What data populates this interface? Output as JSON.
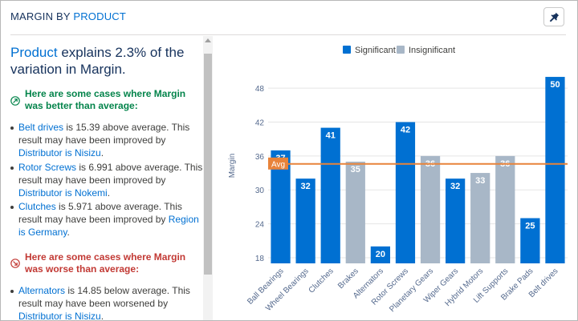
{
  "header": {
    "title_prefix": "MARGIN BY",
    "title_accent": "PRODUCT",
    "pin_icon": "pin-icon"
  },
  "insight": {
    "headline_accent": "Product",
    "headline_rest": " explains 2.3% of the variation in Margin.",
    "better": {
      "title": "Here are some cases where Margin was better than average:",
      "icon": "trend-up-circle-icon",
      "items": [
        {
          "name": "Belt drives",
          "text": " is 15.39 above average. This result may have been improved by ",
          "driver": "Distributor is Nisizu",
          "tail": "."
        },
        {
          "name": "Rotor Screws",
          "text": " is 6.991 above average. This result may have been improved by ",
          "driver": "Distributor is Nokemi",
          "tail": "."
        },
        {
          "name": "Clutches",
          "text": " is 5.971 above average. This result may have been improved by ",
          "driver": "Region is Germany",
          "tail": "."
        }
      ]
    },
    "worse": {
      "title": "Here are some cases where Margin was worse than average:",
      "icon": "trend-down-circle-icon",
      "items": [
        {
          "name": "Alternators",
          "text": " is 14.85 below average. This result may have been worsened by ",
          "driver": "Distributor is Nisizu",
          "tail": "."
        }
      ]
    }
  },
  "colors": {
    "significant": "#0070d2",
    "insignificant": "#a8b7c7",
    "average_line": "#e8833a",
    "good": "#04844b",
    "bad": "#c23934"
  },
  "chart_data": {
    "type": "bar",
    "title": "",
    "ylabel": "Margin",
    "xlabel": "",
    "ylim": [
      17,
      51
    ],
    "yticks": [
      18,
      24,
      30,
      36,
      42,
      48
    ],
    "grid": true,
    "legend": {
      "placement": "top-center",
      "entries": [
        "Significant",
        "Insignificant"
      ]
    },
    "average": {
      "label": "Avg",
      "value": 34.6
    },
    "categories": [
      "Ball Bearings",
      "Wheel Bearings",
      "Clutches",
      "Brakes",
      "Alternators",
      "Rotor Screws",
      "Planetary Gears",
      "Wiper Gears",
      "Hybrid Motors",
      "Lift Supports",
      "Brake Pads",
      "Belt drives"
    ],
    "values": [
      37,
      32,
      41,
      35,
      20,
      42,
      36,
      32,
      33,
      36,
      25,
      50
    ],
    "significance": [
      "Significant",
      "Significant",
      "Significant",
      "Insignificant",
      "Significant",
      "Significant",
      "Insignificant",
      "Significant",
      "Insignificant",
      "Insignificant",
      "Significant",
      "Significant"
    ]
  }
}
